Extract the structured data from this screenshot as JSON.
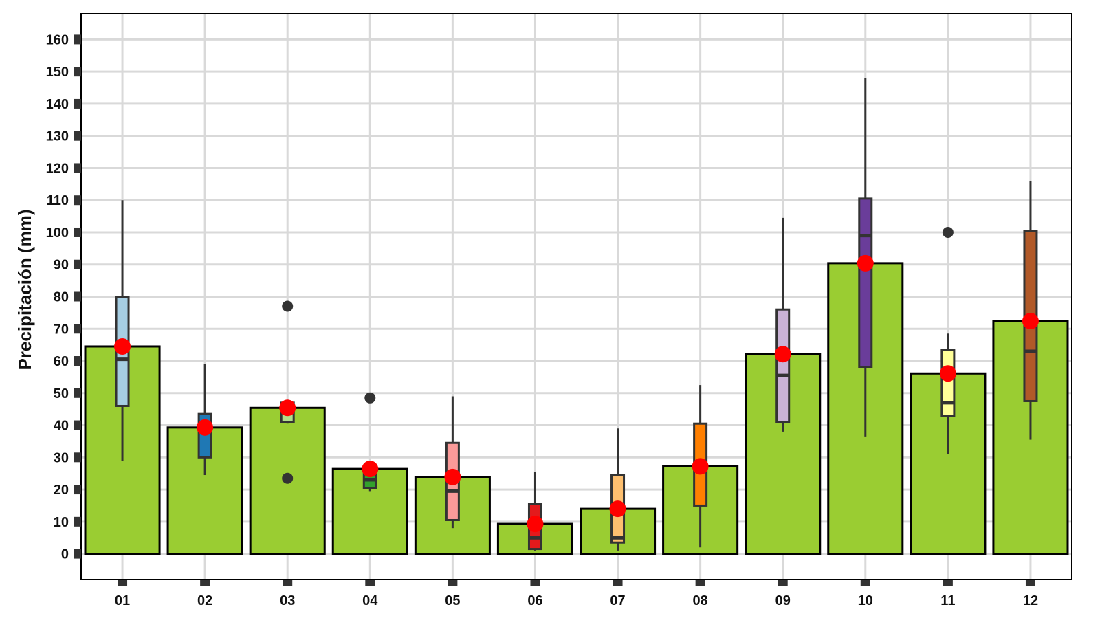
{
  "chart_data": {
    "type": "bar",
    "title": "",
    "xlabel": "",
    "ylabel": "Precipitación (mm)",
    "ylim": [
      -8,
      168
    ],
    "yticks": [
      0,
      10,
      20,
      30,
      40,
      50,
      60,
      70,
      80,
      90,
      100,
      110,
      120,
      130,
      140,
      150,
      160
    ],
    "categories": [
      "01",
      "02",
      "03",
      "04",
      "05",
      "06",
      "07",
      "08",
      "09",
      "10",
      "11",
      "12"
    ],
    "grid": true,
    "bar_color": "#9ACD32",
    "mean_color": "#FF0000",
    "outlier_color": "#333333",
    "series": [
      {
        "type": "bar",
        "values": [
          64.5,
          39.3,
          45.4,
          26.4,
          23.9,
          9.3,
          14.0,
          27.2,
          62.1,
          90.4,
          56.1,
          72.4
        ]
      },
      {
        "type": "boxplot",
        "colors": [
          "#A6CEE3",
          "#1F78B4",
          "#B2DF8A",
          "#33A02C",
          "#FB9A99",
          "#E31A1C",
          "#FDBF6F",
          "#FF7F00",
          "#CAB2D6",
          "#6A3D9A",
          "#FFFF99",
          "#B15928"
        ],
        "boxes": [
          {
            "min": 29,
            "q1": 46,
            "median": 60.5,
            "q3": 80,
            "max": 110,
            "outliers": []
          },
          {
            "min": 24.5,
            "q1": 30,
            "median": 38,
            "q3": 43.5,
            "max": 59,
            "outliers": []
          },
          {
            "min": 40.5,
            "q1": 41,
            "median": 44,
            "q3": 47,
            "max": 47,
            "outliers": [
              77,
              23.5
            ]
          },
          {
            "min": 19.5,
            "q1": 20.5,
            "median": 23,
            "q3": 26.5,
            "max": 26.5,
            "outliers": [
              48.5
            ]
          },
          {
            "min": 8,
            "q1": 10.5,
            "median": 19.5,
            "q3": 34.5,
            "max": 49,
            "outliers": []
          },
          {
            "min": 1,
            "q1": 1.5,
            "median": 5,
            "q3": 15.5,
            "max": 25.5,
            "outliers": []
          },
          {
            "min": 1,
            "q1": 3.5,
            "median": 5,
            "q3": 24.5,
            "max": 39,
            "outliers": []
          },
          {
            "min": 2,
            "q1": 15,
            "median": 26,
            "q3": 40.5,
            "max": 52.5,
            "outliers": []
          },
          {
            "min": 38,
            "q1": 41,
            "median": 55.5,
            "q3": 76,
            "max": 104.5,
            "outliers": []
          },
          {
            "min": 36.5,
            "q1": 58,
            "median": 99,
            "q3": 110.5,
            "max": 148,
            "outliers": []
          },
          {
            "min": 31,
            "q1": 43,
            "median": 47,
            "q3": 63.5,
            "max": 68.5,
            "outliers": [
              100
            ]
          },
          {
            "min": 35.5,
            "q1": 47.5,
            "median": 63,
            "q3": 100.5,
            "max": 116,
            "outliers": []
          }
        ]
      },
      {
        "type": "mean_point",
        "values": [
          64.5,
          39.3,
          45.4,
          26.4,
          23.9,
          9.3,
          14.0,
          27.2,
          62.1,
          90.4,
          56.1,
          72.4
        ]
      }
    ]
  }
}
